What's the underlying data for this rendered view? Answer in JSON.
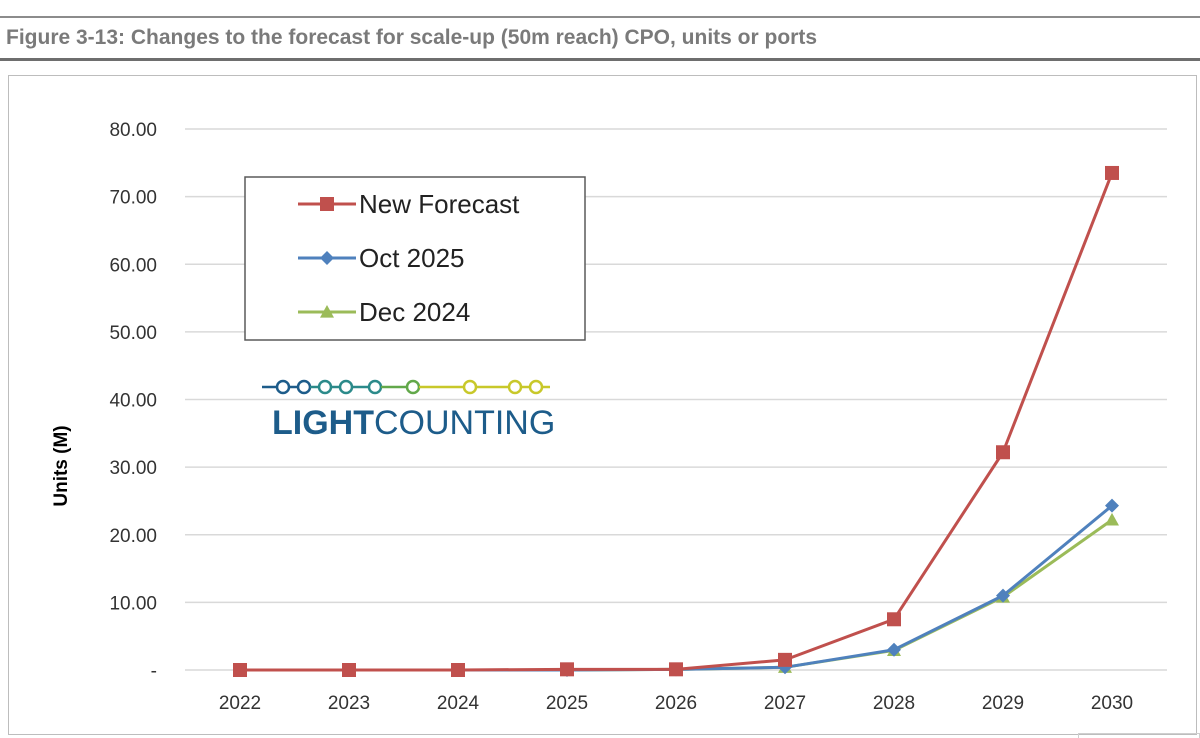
{
  "figure": {
    "title": "Figure 3-13: Changes to the forecast for scale-up (50m reach) CPO, units or ports"
  },
  "logo": {
    "text_bold": "LIGHT",
    "text_regular": "COUNTING",
    "colors": [
      "#1d5c8a",
      "#2b8a8a",
      "#62a84a",
      "#c8c82a"
    ]
  },
  "chart_data": {
    "type": "line",
    "title": "",
    "xlabel": "",
    "ylabel": "Units (M)",
    "categories": [
      "2022",
      "2023",
      "2024",
      "2025",
      "2026",
      "2027",
      "2028",
      "2029",
      "2030"
    ],
    "ylim": [
      0,
      80
    ],
    "yticks": [
      0,
      10,
      20,
      30,
      40,
      50,
      60,
      70,
      80
    ],
    "ytick_labels": [
      "-",
      "10.00",
      "20.00",
      "30.00",
      "40.00",
      "50.00",
      "60.00",
      "70.00",
      "80.00"
    ],
    "grid": true,
    "legend_position": "top-left",
    "series": [
      {
        "name": "New Forecast",
        "color": "#c0504d",
        "marker": "square",
        "values": [
          0,
          0,
          0,
          0.1,
          0.1,
          1.5,
          7.5,
          32.2,
          73.5
        ]
      },
      {
        "name": "Oct 2025",
        "color": "#4f81bd",
        "marker": "diamond",
        "values": [
          0,
          0,
          0,
          0,
          0.1,
          0.4,
          3.0,
          11.0,
          24.3
        ]
      },
      {
        "name": "Dec 2024",
        "color": "#9bbb59",
        "marker": "triangle",
        "values": [
          0,
          0,
          0,
          0,
          0.1,
          0.4,
          2.9,
          10.8,
          22.2
        ]
      }
    ]
  }
}
